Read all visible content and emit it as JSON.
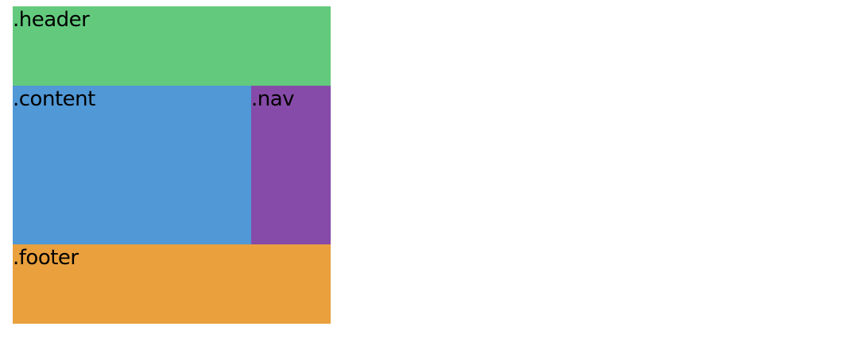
{
  "regions": {
    "header": {
      "label": ".header",
      "color": "#63ca7d"
    },
    "content": {
      "label": ".content",
      "color": "#5098d6"
    },
    "nav": {
      "label": ".nav",
      "color": "#864ba8"
    },
    "footer": {
      "label": ".footer",
      "color": "#e9a03d"
    }
  }
}
